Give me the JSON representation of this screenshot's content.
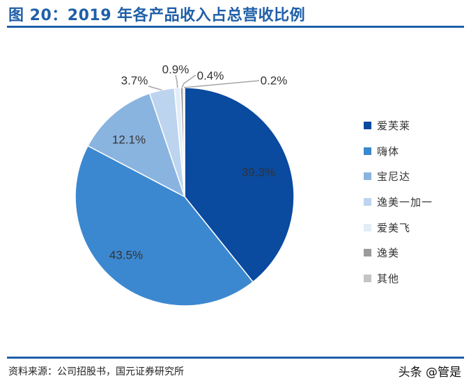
{
  "header": {
    "title": "图 20：2019 年各产品收入占总营收比例"
  },
  "footer": {
    "source": "资料来源：公司招股书，国元证券研究所"
  },
  "watermark": {
    "text": "头条 @管是"
  },
  "chart_data": {
    "type": "pie",
    "unit": "%",
    "start": "12 o'clock, clockwise",
    "slices": [
      {
        "label": "爱芙莱",
        "value": 39.3,
        "value_label": "39.3%",
        "color": "#0a4a9f"
      },
      {
        "label": "嗨体",
        "value": 43.5,
        "value_label": "43.5%",
        "color": "#3b88d0"
      },
      {
        "label": "宝尼达",
        "value": 12.1,
        "value_label": "12.1%",
        "color": "#8ab4e0"
      },
      {
        "label": "逸美一加一",
        "value": 3.7,
        "value_label": "3.7%",
        "color": "#bcd4ee"
      },
      {
        "label": "爱美飞",
        "value": 0.9,
        "value_label": "0.9%",
        "color": "#e3edf8"
      },
      {
        "label": "逸美",
        "value": 0.4,
        "value_label": "0.4%",
        "color": "#9b9b9b"
      },
      {
        "label": "其他",
        "value": 0.2,
        "value_label": "0.2%",
        "color": "#c4c4c4"
      }
    ],
    "legend_position": "right"
  }
}
